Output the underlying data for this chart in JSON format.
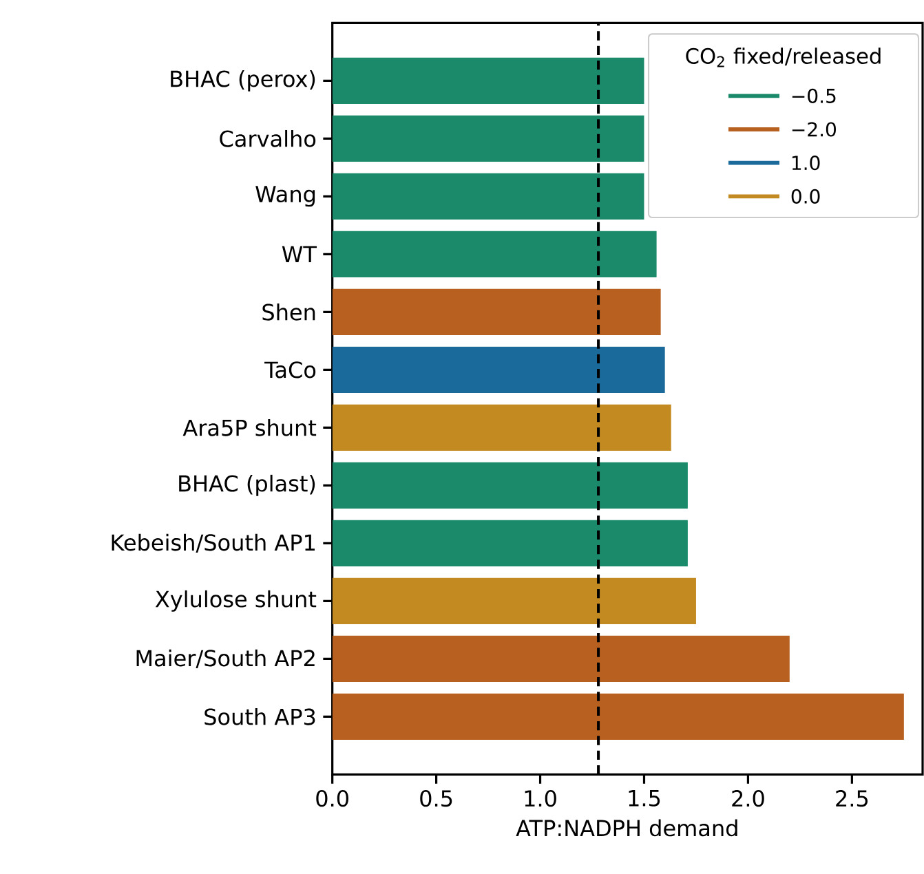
{
  "chart_data": {
    "type": "bar",
    "orientation": "horizontal",
    "xlabel": "ATP:NADPH demand",
    "legend_title": "CO$_{2}$ fixed/released",
    "legend": "top right",
    "categories": [
      "BHAC (perox)",
      "Carvalho",
      "Wang",
      "WT",
      "Shen",
      "TaCo",
      "Ara5P shunt",
      "BHAC (plast)",
      "Kebeish/South AP1",
      "Xylulose shunt",
      "Maier/South AP2",
      "South AP3"
    ],
    "series": [
      {
        "name": "−0.5",
        "color": "#1b8a6b",
        "values": [
          1.5,
          1.5,
          1.5,
          1.56,
          null,
          null,
          null,
          1.71,
          1.71,
          null,
          null,
          null
        ]
      },
      {
        "name": "−2.0",
        "color": "#b8601f",
        "values": [
          null,
          null,
          null,
          null,
          1.58,
          null,
          null,
          null,
          null,
          null,
          2.2,
          2.75
        ]
      },
      {
        "name": "1.0",
        "color": "#1a6b9c",
        "values": [
          null,
          null,
          null,
          null,
          null,
          1.6,
          null,
          null,
          null,
          null,
          null,
          null
        ]
      },
      {
        "name": "0.0",
        "color": "#c38a22",
        "values": [
          null,
          null,
          null,
          null,
          null,
          null,
          1.63,
          null,
          null,
          1.75,
          null,
          null
        ]
      }
    ],
    "xlim": [
      0,
      2.84
    ],
    "xticks": [
      {
        "value": 0,
        "label": "0.0"
      },
      0.5,
      {
        "value": 1,
        "label": "1.0"
      },
      1.5,
      {
        "value": 2,
        "label": "2.0"
      },
      2.5
    ],
    "ref_lines": [
      {
        "axis": "x",
        "value": 1.28,
        "line_style": "dashed",
        "color": "#000000"
      }
    ],
    "grid": false
  }
}
